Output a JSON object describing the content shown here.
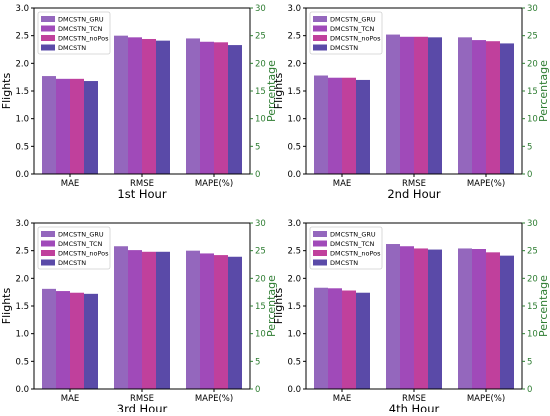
{
  "chart_data": [
    {
      "type": "bar",
      "title": "1st Hour",
      "categories": [
        "MAE",
        "RMSE",
        "MAPE(%)"
      ],
      "ylabel": "Flights",
      "ylabel_right": "Percentage",
      "ylim": [
        0,
        3.0
      ],
      "ylim_right": [
        0,
        30
      ],
      "yticks": [
        "0.0",
        "0.5",
        "1.0",
        "1.5",
        "2.0",
        "2.5",
        "3.0"
      ],
      "yticks_right": [
        "0",
        "5",
        "10",
        "15",
        "20",
        "25",
        "30"
      ],
      "legend_position": "top-left",
      "series": [
        {
          "name": "DMCSTN_GRU",
          "color": "#9467bd",
          "values": [
            1.77,
            2.5,
            2.45
          ]
        },
        {
          "name": "DMCSTN_TCN",
          "color": "#a04ab9",
          "values": [
            1.72,
            2.47,
            2.39
          ]
        },
        {
          "name": "DMCSTN_noPos",
          "color": "#c0409c",
          "values": [
            1.72,
            2.44,
            2.38
          ]
        },
        {
          "name": "DMCSTN",
          "color": "#5a4aa8",
          "values": [
            1.68,
            2.41,
            2.33
          ]
        }
      ]
    },
    {
      "type": "bar",
      "title": "2nd Hour",
      "categories": [
        "MAE",
        "RMSE",
        "MAPE(%)"
      ],
      "ylabel": "Flights",
      "ylabel_right": "Percentage",
      "ylim": [
        0,
        3.0
      ],
      "ylim_right": [
        0,
        30
      ],
      "yticks": [
        "0.0",
        "0.5",
        "1.0",
        "1.5",
        "2.0",
        "2.5",
        "3.0"
      ],
      "yticks_right": [
        "0",
        "5",
        "10",
        "15",
        "20",
        "25",
        "30"
      ],
      "legend_position": "top-left",
      "series": [
        {
          "name": "DMCSTN_GRU",
          "color": "#9467bd",
          "values": [
            1.78,
            2.52,
            2.47
          ]
        },
        {
          "name": "DMCSTN_TCN",
          "color": "#a04ab9",
          "values": [
            1.74,
            2.48,
            2.42
          ]
        },
        {
          "name": "DMCSTN_noPos",
          "color": "#c0409c",
          "values": [
            1.74,
            2.48,
            2.4
          ]
        },
        {
          "name": "DMCSTN",
          "color": "#5a4aa8",
          "values": [
            1.7,
            2.47,
            2.36
          ]
        }
      ]
    },
    {
      "type": "bar",
      "title": "3rd Hour",
      "categories": [
        "MAE",
        "RMSE",
        "MAPE(%)"
      ],
      "ylabel": "Flights",
      "ylabel_right": "Percentage",
      "ylim": [
        0,
        3.0
      ],
      "ylim_right": [
        0,
        30
      ],
      "yticks": [
        "0.0",
        "0.5",
        "1.0",
        "1.5",
        "2.0",
        "2.5",
        "3.0"
      ],
      "yticks_right": [
        "0",
        "5",
        "10",
        "15",
        "20",
        "25",
        "30"
      ],
      "legend_position": "top-left",
      "series": [
        {
          "name": "DMCSTN_GRU",
          "color": "#9467bd",
          "values": [
            1.81,
            2.58,
            2.5
          ]
        },
        {
          "name": "DMCSTN_TCN",
          "color": "#a04ab9",
          "values": [
            1.77,
            2.51,
            2.45
          ]
        },
        {
          "name": "DMCSTN_noPos",
          "color": "#c0409c",
          "values": [
            1.74,
            2.48,
            2.42
          ]
        },
        {
          "name": "DMCSTN",
          "color": "#5a4aa8",
          "values": [
            1.72,
            2.48,
            2.39
          ]
        }
      ]
    },
    {
      "type": "bar",
      "title": "4th Hour",
      "categories": [
        "MAE",
        "RMSE",
        "MAPE(%)"
      ],
      "ylabel": "Flights",
      "ylabel_right": "Percentage",
      "ylim": [
        0,
        3.0
      ],
      "ylim_right": [
        0,
        30
      ],
      "yticks": [
        "0.0",
        "0.5",
        "1.0",
        "1.5",
        "2.0",
        "2.5",
        "3.0"
      ],
      "yticks_right": [
        "0",
        "5",
        "10",
        "15",
        "20",
        "25",
        "30"
      ],
      "legend_position": "top-left",
      "series": [
        {
          "name": "DMCSTN_GRU",
          "color": "#9467bd",
          "values": [
            1.83,
            2.62,
            2.54
          ]
        },
        {
          "name": "DMCSTN_TCN",
          "color": "#a04ab9",
          "values": [
            1.82,
            2.58,
            2.53
          ]
        },
        {
          "name": "DMCSTN_noPos",
          "color": "#c0409c",
          "values": [
            1.78,
            2.54,
            2.47
          ]
        },
        {
          "name": "DMCSTN",
          "color": "#5a4aa8",
          "values": [
            1.74,
            2.52,
            2.41
          ]
        }
      ]
    }
  ],
  "colors": {
    "right_axis": "#2e7d32",
    "axis": "#000000"
  }
}
